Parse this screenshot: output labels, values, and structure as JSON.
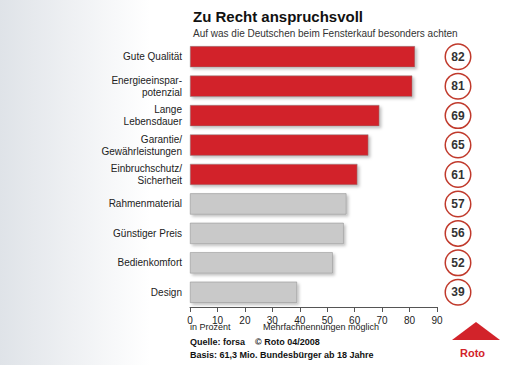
{
  "chart_data": {
    "type": "bar",
    "orientation": "horizontal",
    "title": "Zu Recht anspruchsvoll",
    "subtitle": "Auf was die Deutschen beim Fensterkauf besonders achten",
    "categories": [
      "Gute Qualität",
      "Energieeinspar-\npotenzial",
      "Lange\nLebensdauer",
      "Garantie/\nGewährleistungen",
      "Einbruchschutz/\nSicherheit",
      "Rahmenmaterial",
      "Günstiger Preis",
      "Bedienkomfort",
      "Design"
    ],
    "values": [
      82,
      81,
      69,
      65,
      61,
      57,
      56,
      52,
      39
    ],
    "colors": [
      "#d2232a",
      "#d2232a",
      "#d2232a",
      "#d2232a",
      "#d2232a",
      "#c9c9c9",
      "#c9c9c9",
      "#c9c9c9",
      "#c9c9c9"
    ],
    "xlim": [
      0,
      90
    ],
    "xticks": [
      0,
      10,
      20,
      30,
      40,
      50,
      60,
      70,
      80,
      90
    ],
    "xlabel": "in Prozent",
    "annotations": [
      "Mehrfachnennungen möglich",
      "Quelle: forsa    © Roto 04/2008",
      "Basis: 61,3 Mio. Bundesbürger ab 18 Jahre",
      "Roto"
    ],
    "grid": false,
    "data_labels": true
  }
}
